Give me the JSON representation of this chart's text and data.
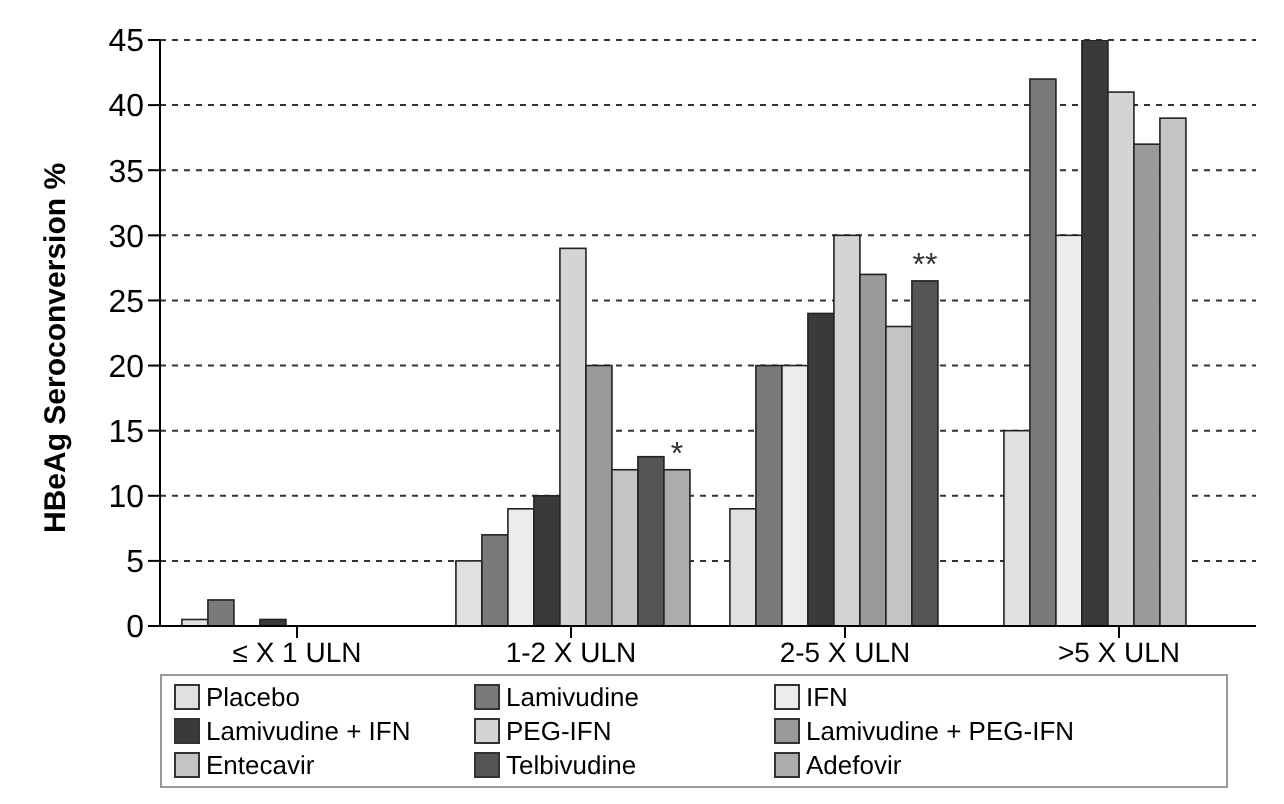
{
  "chart_data": {
    "type": "bar",
    "ylabel": "HBeAg Seroconversion %",
    "categories": [
      "≤ X 1 ULN",
      "1-2 X ULN",
      "2-5 X ULN",
      ">5 X ULN"
    ],
    "series": [
      {
        "name": "Placebo",
        "color": "#e0e0e0",
        "values": [
          0.5,
          5,
          9,
          15
        ]
      },
      {
        "name": "Lamivudine",
        "color": "#7a7a7a",
        "values": [
          2,
          7,
          20,
          42
        ]
      },
      {
        "name": "IFN",
        "color": "#ececec",
        "values": [
          null,
          9,
          20,
          30
        ]
      },
      {
        "name": "Lamivudine + IFN",
        "color": "#3a3a3a",
        "values": [
          0.5,
          10,
          24,
          45
        ]
      },
      {
        "name": "PEG-IFN",
        "color": "#d4d4d4",
        "values": [
          null,
          29,
          30,
          41
        ]
      },
      {
        "name": "Lamivudine + PEG-IFN",
        "color": "#9a9a9a",
        "values": [
          null,
          20,
          27,
          37
        ]
      },
      {
        "name": "Entecavir",
        "color": "#c4c4c4",
        "values": [
          null,
          12,
          23,
          39
        ]
      },
      {
        "name": "Telbivudine",
        "color": "#555555",
        "values": [
          null,
          13,
          26.5,
          null
        ]
      },
      {
        "name": "Adefovir",
        "color": "#acacac",
        "values": [
          null,
          12,
          null,
          null
        ]
      }
    ],
    "ylim": [
      0,
      45
    ],
    "yticks": [
      0,
      5,
      10,
      15,
      20,
      25,
      30,
      35,
      40,
      45
    ],
    "grid": "y",
    "legend": "bottom",
    "annotations": [
      "*",
      "**"
    ]
  }
}
